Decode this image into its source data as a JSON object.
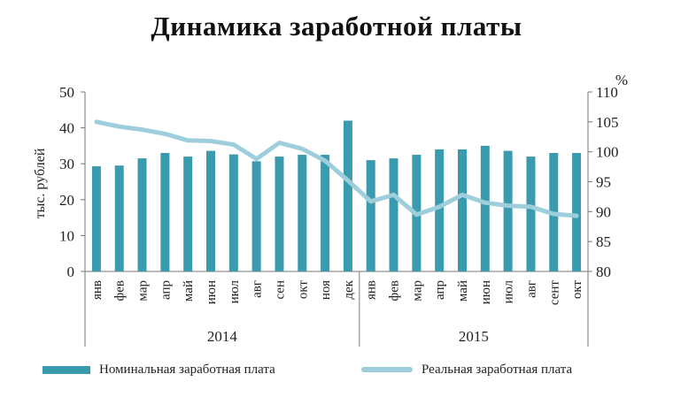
{
  "chart_data": {
    "type": "bar+line",
    "title": "Динамика заработной платы",
    "y_left_label": "тыс. рублей",
    "y_left_ticks": [
      "0",
      "10",
      "20",
      "30",
      "40",
      "50"
    ],
    "y_left_lim": [
      0,
      50
    ],
    "y_right_label": "%",
    "y_right_ticks": [
      "80",
      "85",
      "90",
      "95",
      "100",
      "105",
      "110"
    ],
    "y_right_lim": [
      80,
      110
    ],
    "categories": [
      "янв",
      "фев",
      "мар",
      "апр",
      "май",
      "июн",
      "июл",
      "авг",
      "сен",
      "окт",
      "ноя",
      "дек",
      "янв",
      "фев",
      "мар",
      "апр",
      "май",
      "июн",
      "июл",
      "авг",
      "сент",
      "окт"
    ],
    "year_groups": [
      {
        "label": "2014",
        "count": 12
      },
      {
        "label": "2015",
        "count": 10
      }
    ],
    "series": [
      {
        "name": "Номинальная заработная плата",
        "kind": "bar",
        "axis": "left",
        "color": "#3a9aae",
        "values": [
          29.3,
          29.5,
          31.5,
          33.0,
          32.0,
          33.6,
          32.6,
          30.7,
          32.0,
          32.5,
          32.5,
          42.0,
          31.0,
          31.5,
          32.5,
          34.0,
          34.0,
          35.0,
          33.6,
          32.0,
          33.0,
          33.0
        ]
      },
      {
        "name": "Реальная заработная плата",
        "kind": "line",
        "axis": "right",
        "color": "#9ecedc",
        "values": [
          105.0,
          104.2,
          103.7,
          103.0,
          101.9,
          101.8,
          101.2,
          98.8,
          101.5,
          100.5,
          98.5,
          95.2,
          91.7,
          92.8,
          89.5,
          90.8,
          92.8,
          91.5,
          91.0,
          90.8,
          89.6,
          89.3
        ]
      }
    ]
  }
}
